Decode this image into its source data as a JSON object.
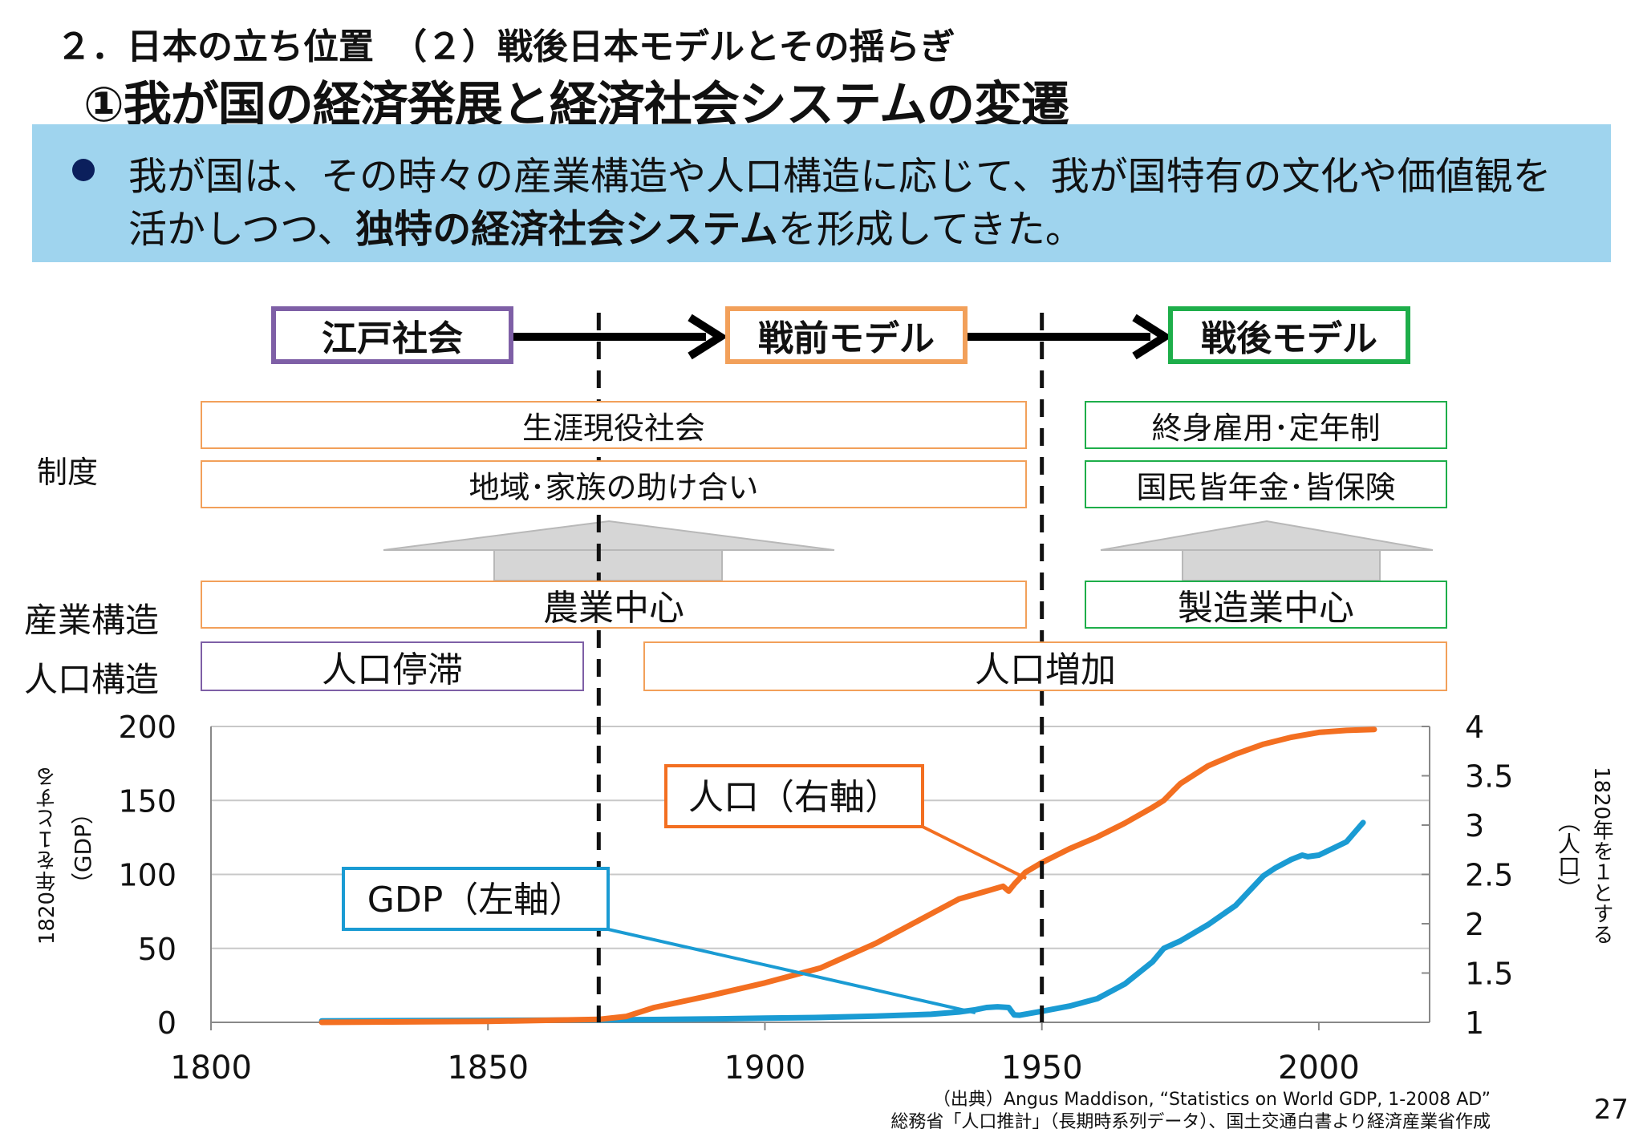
{
  "header": {
    "section_title": "２．日本の立ち位置　（２）戦後日本モデルとその揺らぎ",
    "main_title": "①我が国の経済発展と経済社会システムの変遷"
  },
  "banner": {
    "line1": "我が国は、その時々の産業構造や人口構造に応じて、我が国特有の文化や価値観を",
    "line2_pre": "活かしつつ、",
    "line2_em": "独特の経済社会システム",
    "line2_post": "を形成してきた。"
  },
  "eras": [
    {
      "label": "江戸社会",
      "color": "#7e5fa6"
    },
    {
      "label": "戦前モデル",
      "color": "#f2a05a"
    },
    {
      "label": "戦後モデル",
      "color": "#1eae4a"
    }
  ],
  "rows": {
    "institution_label": "制度",
    "industry_label": "産業構造",
    "population_label": "人口構造",
    "prewar_lifetime": "生涯現役社会",
    "prewar_mutual": "地域･家族の助け合い",
    "postwar_employment": "終身雇用･定年制",
    "postwar_pension": "国民皆年金･皆保険",
    "prewar_industry": "農業中心",
    "postwar_industry": "製造業中心",
    "pop_stagnation": "人口停滞",
    "pop_increase": "人口増加"
  },
  "colors": {
    "gdp": "#1a9bd3",
    "population": "#f36f21",
    "edo": "#7e5fa6",
    "prewar": "#f2a05a",
    "postwar": "#1eae4a"
  },
  "chart_data": {
    "type": "line",
    "x_ticks": [
      "1800",
      "1850",
      "1900",
      "1950",
      "2000"
    ],
    "xlim": [
      1800,
      2020
    ],
    "left_axis": {
      "label": "（GDP）",
      "sublabel": "1820年を１とする",
      "ticks": [
        "200",
        "150",
        "100",
        "50",
        "0"
      ],
      "ylim": [
        0,
        200
      ]
    },
    "right_axis": {
      "label": "（人口）",
      "sublabel": "1820年を１とする",
      "ticks": [
        "4",
        "3.5",
        "3",
        "2.5",
        "2",
        "1.5",
        "1"
      ],
      "ylim": [
        1,
        4
      ]
    },
    "dividers": [
      1870,
      1950
    ],
    "series": [
      {
        "name": "GDP（左軸）",
        "axis": "left",
        "x": [
          1820,
          1850,
          1870,
          1880,
          1890,
          1900,
          1910,
          1920,
          1930,
          1935,
          1938,
          1940,
          1942,
          1944,
          1945,
          1946,
          1950,
          1955,
          1960,
          1965,
          1970,
          1972,
          1975,
          1980,
          1985,
          1990,
          1992,
          1995,
          1997,
          1998,
          2000,
          2005,
          2008
        ],
        "values": [
          1,
          1.3,
          1.6,
          1.9,
          2.3,
          2.8,
          3.3,
          4.2,
          5.5,
          7,
          8.5,
          10,
          10.5,
          10,
          5,
          4.8,
          7.5,
          11,
          16,
          26,
          41,
          50,
          55,
          66,
          79,
          99,
          104,
          110,
          113,
          112,
          113,
          122,
          135
        ]
      },
      {
        "name": "人口（右軸）",
        "axis": "right",
        "x": [
          1820,
          1850,
          1870,
          1875,
          1880,
          1890,
          1900,
          1910,
          1920,
          1930,
          1935,
          1940,
          1943,
          1944,
          1945,
          1947,
          1950,
          1955,
          1960,
          1965,
          1970,
          1972,
          1975,
          1980,
          1985,
          1990,
          1995,
          2000,
          2005,
          2010
        ],
        "values": [
          1,
          1.01,
          1.03,
          1.06,
          1.15,
          1.27,
          1.4,
          1.55,
          1.8,
          2.1,
          2.25,
          2.33,
          2.38,
          2.33,
          2.4,
          2.52,
          2.62,
          2.76,
          2.88,
          3.02,
          3.18,
          3.25,
          3.42,
          3.6,
          3.72,
          3.82,
          3.89,
          3.94,
          3.96,
          3.97
        ]
      }
    ]
  },
  "source": {
    "line1": "（出典）Angus Maddison, “Statistics on World GDP, 1-2008 AD”",
    "line2": "総務省「人口推計」（長期時系列データ）、国土交通白書より経済産業省作成"
  },
  "page_number": "27"
}
